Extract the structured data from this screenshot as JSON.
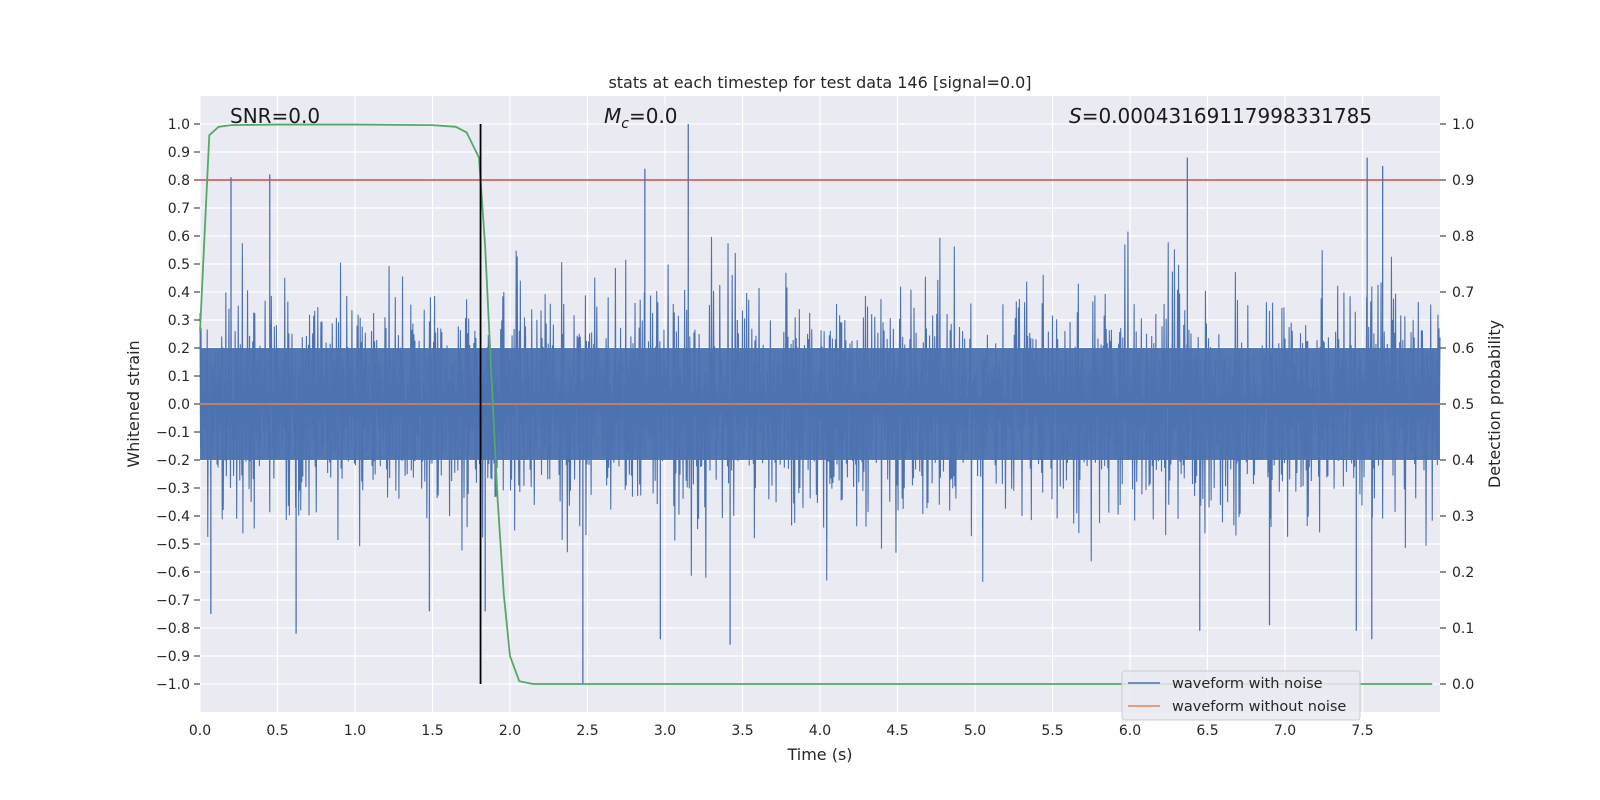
{
  "chart_data": {
    "type": "line",
    "title": "stats at each timestep for test data 146 [signal=0.0]",
    "xlabel": "Time (s)",
    "ylabel_left": "Whitened strain",
    "ylabel_right": "Detection probability",
    "xlim": [
      0.0,
      8.0
    ],
    "ylim_left": [
      -1.1,
      1.1
    ],
    "ylim_right": [
      -0.05,
      1.05
    ],
    "x_ticks": [
      "0.0",
      "0.5",
      "1.0",
      "1.5",
      "2.0",
      "2.5",
      "3.0",
      "3.5",
      "4.0",
      "4.5",
      "5.0",
      "5.5",
      "6.0",
      "6.5",
      "7.0",
      "7.5"
    ],
    "y_ticks_left": [
      "1.0",
      "0.9",
      "0.8",
      "0.7",
      "0.6",
      "0.5",
      "0.4",
      "0.3",
      "0.2",
      "0.1",
      "0.0",
      "−0.1",
      "−0.2",
      "−0.3",
      "−0.4",
      "−0.5",
      "−0.6",
      "−0.7",
      "−0.8",
      "−0.9",
      "−1.0"
    ],
    "y_ticks_right": [
      "1.0",
      "0.9",
      "0.8",
      "0.7",
      "0.6",
      "0.5",
      "0.4",
      "0.3",
      "0.2",
      "0.1",
      "0.0"
    ],
    "grid": true,
    "legend_position": "bottom-right",
    "annotations": {
      "snr": "SNR=0.0",
      "mc_symbol": "M",
      "mc_sub": "c",
      "mc_value": "=0.0",
      "s_symbol": "S",
      "s_value": "=0.00043169117998331785"
    },
    "threshold_line": {
      "axis": "right",
      "value": 0.9,
      "color": "#c44e52"
    },
    "vertical_marker": {
      "x": 1.81,
      "color": "#000000"
    },
    "series": [
      {
        "name": "waveform with noise",
        "axis": "left",
        "color": "#4c72b0",
        "description_of_shape": "dense noise spanning roughly -0.6 to 0.6",
        "peaks": [
          {
            "x": 0.2,
            "y": 0.81
          },
          {
            "x": 0.45,
            "y": 0.82
          },
          {
            "x": 2.87,
            "y": 0.84
          },
          {
            "x": 3.15,
            "y": 1.0
          },
          {
            "x": 6.37,
            "y": 0.88
          },
          {
            "x": 7.53,
            "y": 0.88
          },
          {
            "x": 7.63,
            "y": 0.85
          },
          {
            "x": 2.47,
            "y": -1.0
          },
          {
            "x": 0.62,
            "y": -0.82
          },
          {
            "x": 3.42,
            "y": -0.86
          },
          {
            "x": 6.45,
            "y": -0.81
          },
          {
            "x": 7.56,
            "y": -0.84
          },
          {
            "x": 7.46,
            "y": -0.81
          },
          {
            "x": 2.97,
            "y": -0.84
          },
          {
            "x": 1.84,
            "y": -0.74
          },
          {
            "x": 1.48,
            "y": -0.74
          },
          {
            "x": 0.07,
            "y": -0.75
          },
          {
            "x": 6.9,
            "y": -0.79
          }
        ]
      },
      {
        "name": "waveform without noise",
        "axis": "left",
        "color": "#dd8452",
        "x": [
          0.0,
          8.0
        ],
        "y": [
          0.0,
          0.0
        ]
      },
      {
        "name": "",
        "axis": "right",
        "color": "#55a868",
        "x": [
          0.0,
          0.06,
          0.12,
          0.2,
          0.5,
          1.0,
          1.5,
          1.65,
          1.72,
          1.8,
          1.84,
          1.88,
          1.92,
          1.96,
          2.0,
          2.06,
          2.15,
          3.0,
          5.0,
          7.0,
          7.95
        ],
        "y": [
          0.63,
          0.98,
          0.995,
          0.998,
          0.999,
          0.999,
          0.998,
          0.995,
          0.985,
          0.94,
          0.78,
          0.55,
          0.33,
          0.16,
          0.05,
          0.005,
          0.0,
          0.0,
          0.0,
          0.0,
          0.0
        ]
      }
    ]
  }
}
